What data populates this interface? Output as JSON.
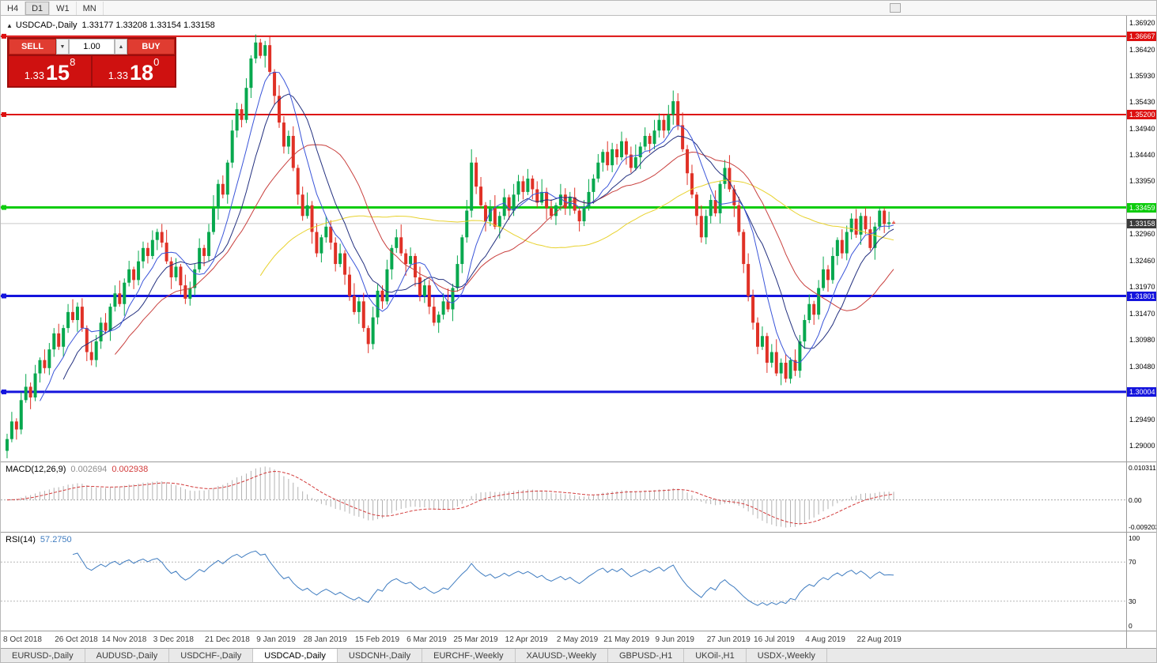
{
  "toolbar": {
    "timeframes": [
      "H4",
      "D1",
      "W1",
      "MN"
    ],
    "active": "D1"
  },
  "header": {
    "collapse_icon": "▲",
    "symbol": "USDCAD-,Daily",
    "ohlc": "1.33177 1.33208 1.33154 1.33158"
  },
  "trade": {
    "sell_label": "SELL",
    "buy_label": "BUY",
    "lot": "1.00",
    "spin_down": "▼",
    "spin_up": "▲",
    "sell_price": {
      "prefix": "1.33",
      "big": "15",
      "sup": "8"
    },
    "buy_price": {
      "prefix": "1.33",
      "big": "18",
      "sup": "0"
    }
  },
  "tabs": {
    "active_index": 3,
    "items": [
      "EURUSD-,Daily",
      "AUDUSD-,Daily",
      "USDCHF-,Daily",
      "USDCAD-,Daily",
      "USDCNH-,Daily",
      "EURCHF-,Weekly",
      "XAUUSD-,Weekly",
      "GBPUSD-,H1",
      "UKOil-,H1",
      "USDX-,Weekly"
    ]
  },
  "chart_data": {
    "type": "candlestick",
    "symbol": "USDCAD-",
    "timeframe": "Daily",
    "ylim": [
      1.287,
      1.3705
    ],
    "colors": {
      "up": "#07a84e",
      "down": "#e03126"
    },
    "y_ticks": [
      "1.36920",
      "1.36420",
      "1.35930",
      "1.35430",
      "1.34940",
      "1.34440",
      "1.33950",
      "1.32960",
      "1.32460",
      "1.31970",
      "1.31470",
      "1.30980",
      "1.30480",
      "1.29490",
      "1.29000"
    ],
    "hlines": [
      {
        "price": 1.36667,
        "label": "1.36667",
        "color": "#dd1010",
        "width": 2
      },
      {
        "price": 1.352,
        "label": "1.35200",
        "color": "#dd1010",
        "width": 2
      },
      {
        "price": 1.33459,
        "label": "1.33459",
        "color": "#0ecc0e",
        "width": 3
      },
      {
        "price": 1.31801,
        "label": "1.31801",
        "color": "#1414dd",
        "width": 3
      },
      {
        "price": 1.30004,
        "label": "1.30004",
        "color": "#1414dd",
        "width": 3
      }
    ],
    "current": {
      "price": 1.33158,
      "label": "1.33158",
      "chip_bg": "#3c3c3c"
    },
    "moving_averages": [
      {
        "period": 55,
        "color": "#e8d22e"
      },
      {
        "period": 24,
        "color": "#c9403e"
      },
      {
        "period": 13,
        "color": "#23307f"
      },
      {
        "period": 8,
        "color": "#3a55d9"
      }
    ],
    "x_labels": [
      {
        "text": "8 Oct 2018",
        "i": 0
      },
      {
        "text": "26 Oct 2018",
        "i": 11
      },
      {
        "text": "14 Nov 2018",
        "i": 21
      },
      {
        "text": "3 Dec 2018",
        "i": 32
      },
      {
        "text": "21 Dec 2018",
        "i": 43
      },
      {
        "text": "9 Jan 2019",
        "i": 54
      },
      {
        "text": "28 Jan 2019",
        "i": 64
      },
      {
        "text": "15 Feb 2019",
        "i": 75
      },
      {
        "text": "6 Mar 2019",
        "i": 86
      },
      {
        "text": "25 Mar 2019",
        "i": 96
      },
      {
        "text": "12 Apr 2019",
        "i": 107
      },
      {
        "text": "2 May 2019",
        "i": 118
      },
      {
        "text": "21 May 2019",
        "i": 128
      },
      {
        "text": "9 Jun 2019",
        "i": 139
      },
      {
        "text": "27 Jun 2019",
        "i": 150
      },
      {
        "text": "16 Jul 2019",
        "i": 160
      },
      {
        "text": "4 Aug 2019",
        "i": 171
      },
      {
        "text": "22 Aug 2019",
        "i": 182
      }
    ],
    "macd": {
      "title": "MACD(12,26,9)",
      "value_main": "0.002694",
      "value_signal": "0.002938",
      "fast": 12,
      "slow": 26,
      "signal": 9,
      "axis_top": "0.010311",
      "axis_zero": "0.00",
      "axis_bottom": "-0.0092030",
      "hist_color": "#b2b2b2",
      "signal_color": "#d23b3b"
    },
    "rsi": {
      "title": "RSI(14)",
      "value": "57.2750",
      "period": 14,
      "color": "#3f7cc0",
      "levels": [
        70,
        30
      ],
      "axis_top": "100",
      "axis_bottom": "0",
      "level_labels": [
        "70",
        "30"
      ]
    },
    "ohlc": [
      [
        1.289,
        1.2922,
        1.2876,
        1.2912
      ],
      [
        1.2912,
        1.2963,
        1.2906,
        1.2945
      ],
      [
        1.2945,
        1.2951,
        1.2911,
        1.293
      ],
      [
        1.293,
        1.3,
        1.2921,
        1.2985
      ],
      [
        1.2985,
        1.3034,
        1.298,
        1.301
      ],
      [
        1.301,
        1.3018,
        1.2968,
        1.299
      ],
      [
        1.299,
        1.3051,
        1.2983,
        1.3035
      ],
      [
        1.3035,
        1.3065,
        1.3018,
        1.306
      ],
      [
        1.306,
        1.308,
        1.3035,
        1.3045
      ],
      [
        1.3045,
        1.3092,
        1.3032,
        1.308
      ],
      [
        1.308,
        1.312,
        1.3066,
        1.311
      ],
      [
        1.311,
        1.3128,
        1.3079,
        1.3085
      ],
      [
        1.3085,
        1.3126,
        1.3066,
        1.312
      ],
      [
        1.312,
        1.3165,
        1.3111,
        1.315
      ],
      [
        1.315,
        1.3174,
        1.313,
        1.3135
      ],
      [
        1.3135,
        1.3168,
        1.3113,
        1.316
      ],
      [
        1.316,
        1.3176,
        1.3113,
        1.312
      ],
      [
        1.312,
        1.3125,
        1.3058,
        1.3075
      ],
      [
        1.3075,
        1.3095,
        1.305,
        1.306
      ],
      [
        1.306,
        1.3107,
        1.3047,
        1.3095
      ],
      [
        1.3095,
        1.314,
        1.3081,
        1.313
      ],
      [
        1.313,
        1.3148,
        1.3109,
        1.3115
      ],
      [
        1.3115,
        1.3166,
        1.3096,
        1.316
      ],
      [
        1.316,
        1.32,
        1.3151,
        1.3185
      ],
      [
        1.3185,
        1.3209,
        1.316,
        1.3165
      ],
      [
        1.3165,
        1.3213,
        1.3143,
        1.3205
      ],
      [
        1.3205,
        1.3246,
        1.3198,
        1.323
      ],
      [
        1.323,
        1.3235,
        1.3193,
        1.321
      ],
      [
        1.321,
        1.3265,
        1.32,
        1.3245
      ],
      [
        1.3245,
        1.3282,
        1.3232,
        1.327
      ],
      [
        1.327,
        1.328,
        1.3241,
        1.3255
      ],
      [
        1.3255,
        1.3303,
        1.3249,
        1.3285
      ],
      [
        1.3285,
        1.3306,
        1.3266,
        1.33
      ],
      [
        1.33,
        1.3315,
        1.3271,
        1.328
      ],
      [
        1.328,
        1.3304,
        1.324,
        1.3245
      ],
      [
        1.3245,
        1.3253,
        1.3193,
        1.3215
      ],
      [
        1.3215,
        1.3251,
        1.3208,
        1.3235
      ],
      [
        1.3235,
        1.324,
        1.3183,
        1.32
      ],
      [
        1.32,
        1.322,
        1.3165,
        1.3175
      ],
      [
        1.3175,
        1.3207,
        1.3162,
        1.3195
      ],
      [
        1.3195,
        1.324,
        1.3181,
        1.323
      ],
      [
        1.323,
        1.3288,
        1.3224,
        1.327
      ],
      [
        1.327,
        1.3276,
        1.3236,
        1.3255
      ],
      [
        1.3255,
        1.3315,
        1.3246,
        1.33
      ],
      [
        1.33,
        1.3369,
        1.3295,
        1.3345
      ],
      [
        1.3345,
        1.3398,
        1.3323,
        1.339
      ],
      [
        1.339,
        1.3406,
        1.3363,
        1.337
      ],
      [
        1.337,
        1.3435,
        1.3353,
        1.343
      ],
      [
        1.343,
        1.351,
        1.342,
        1.349
      ],
      [
        1.349,
        1.3542,
        1.3477,
        1.353
      ],
      [
        1.353,
        1.354,
        1.3496,
        1.351
      ],
      [
        1.351,
        1.3588,
        1.3504,
        1.357
      ],
      [
        1.357,
        1.3631,
        1.3551,
        1.3625
      ],
      [
        1.3625,
        1.367,
        1.3616,
        1.3655
      ],
      [
        1.3655,
        1.3662,
        1.3625,
        1.363
      ],
      [
        1.363,
        1.3658,
        1.3608,
        1.365
      ],
      [
        1.365,
        1.3666,
        1.3593,
        1.36
      ],
      [
        1.36,
        1.3605,
        1.3538,
        1.3555
      ],
      [
        1.3555,
        1.3575,
        1.3495,
        1.3505
      ],
      [
        1.3505,
        1.3517,
        1.3447,
        1.346
      ],
      [
        1.346,
        1.349,
        1.3446,
        1.348
      ],
      [
        1.348,
        1.3498,
        1.3414,
        1.342
      ],
      [
        1.342,
        1.3426,
        1.3351,
        1.337
      ],
      [
        1.337,
        1.3385,
        1.3321,
        1.333
      ],
      [
        1.333,
        1.3374,
        1.3325,
        1.335
      ],
      [
        1.335,
        1.3358,
        1.3278,
        1.33
      ],
      [
        1.33,
        1.3316,
        1.3253,
        1.326
      ],
      [
        1.326,
        1.3295,
        1.3243,
        1.329
      ],
      [
        1.329,
        1.333,
        1.328,
        1.331
      ],
      [
        1.331,
        1.3322,
        1.3267,
        1.328
      ],
      [
        1.328,
        1.329,
        1.3226,
        1.324
      ],
      [
        1.324,
        1.3278,
        1.3234,
        1.326
      ],
      [
        1.326,
        1.3266,
        1.3201,
        1.322
      ],
      [
        1.322,
        1.3235,
        1.3171,
        1.318
      ],
      [
        1.318,
        1.3204,
        1.3145,
        1.315
      ],
      [
        1.315,
        1.3178,
        1.3128,
        1.317
      ],
      [
        1.317,
        1.3186,
        1.3113,
        1.312
      ],
      [
        1.312,
        1.3125,
        1.3073,
        1.309
      ],
      [
        1.309,
        1.316,
        1.308,
        1.314
      ],
      [
        1.314,
        1.3202,
        1.3127,
        1.319
      ],
      [
        1.319,
        1.32,
        1.3156,
        1.317
      ],
      [
        1.317,
        1.3248,
        1.3164,
        1.323
      ],
      [
        1.323,
        1.3276,
        1.3211,
        1.327
      ],
      [
        1.327,
        1.3305,
        1.3261,
        1.329
      ],
      [
        1.329,
        1.3314,
        1.3255,
        1.326
      ],
      [
        1.326,
        1.3268,
        1.3218,
        1.324
      ],
      [
        1.324,
        1.3271,
        1.3233,
        1.3255
      ],
      [
        1.3255,
        1.326,
        1.3198,
        1.3215
      ],
      [
        1.3215,
        1.3235,
        1.317,
        1.318
      ],
      [
        1.318,
        1.3212,
        1.3167,
        1.32
      ],
      [
        1.32,
        1.321,
        1.3146,
        1.316
      ],
      [
        1.316,
        1.3178,
        1.3124,
        1.313
      ],
      [
        1.313,
        1.3151,
        1.3111,
        1.3145
      ],
      [
        1.3145,
        1.3185,
        1.3136,
        1.317
      ],
      [
        1.317,
        1.3194,
        1.315,
        1.3155
      ],
      [
        1.3155,
        1.3203,
        1.3133,
        1.3195
      ],
      [
        1.3195,
        1.3256,
        1.3188,
        1.324
      ],
      [
        1.324,
        1.3295,
        1.3223,
        1.329
      ],
      [
        1.329,
        1.336,
        1.328,
        1.334
      ],
      [
        1.334,
        1.3455,
        1.3327,
        1.343
      ],
      [
        1.343,
        1.344,
        1.3371,
        1.3385
      ],
      [
        1.3385,
        1.3403,
        1.3344,
        1.335
      ],
      [
        1.335,
        1.3356,
        1.3301,
        1.332
      ],
      [
        1.332,
        1.336,
        1.3311,
        1.3345
      ],
      [
        1.3345,
        1.3369,
        1.3305,
        1.331
      ],
      [
        1.331,
        1.3338,
        1.3288,
        1.333
      ],
      [
        1.333,
        1.3381,
        1.3323,
        1.3365
      ],
      [
        1.3365,
        1.337,
        1.3323,
        1.334
      ],
      [
        1.334,
        1.339,
        1.333,
        1.337
      ],
      [
        1.337,
        1.3407,
        1.3357,
        1.3395
      ],
      [
        1.3395,
        1.3405,
        1.3361,
        1.3375
      ],
      [
        1.3375,
        1.3418,
        1.3369,
        1.34
      ],
      [
        1.34,
        1.3406,
        1.3361,
        1.338
      ],
      [
        1.338,
        1.3395,
        1.3346,
        1.3355
      ],
      [
        1.3355,
        1.3399,
        1.335,
        1.3375
      ],
      [
        1.3375,
        1.3383,
        1.3323,
        1.3345
      ],
      [
        1.3345,
        1.3361,
        1.3323,
        1.333
      ],
      [
        1.333,
        1.3355,
        1.3313,
        1.335
      ],
      [
        1.335,
        1.339,
        1.334,
        1.337
      ],
      [
        1.337,
        1.3382,
        1.3332,
        1.3345
      ],
      [
        1.3345,
        1.3375,
        1.3331,
        1.3365
      ],
      [
        1.3365,
        1.3383,
        1.3334,
        1.334
      ],
      [
        1.334,
        1.3346,
        1.3301,
        1.332
      ],
      [
        1.332,
        1.336,
        1.3311,
        1.3345
      ],
      [
        1.3345,
        1.3399,
        1.334,
        1.3375
      ],
      [
        1.3375,
        1.3408,
        1.3353,
        1.34
      ],
      [
        1.34,
        1.3446,
        1.3393,
        1.343
      ],
      [
        1.343,
        1.3455,
        1.3413,
        1.345
      ],
      [
        1.345,
        1.347,
        1.3415,
        1.3425
      ],
      [
        1.3425,
        1.3467,
        1.3412,
        1.3455
      ],
      [
        1.3455,
        1.3465,
        1.3426,
        1.344
      ],
      [
        1.344,
        1.3488,
        1.3434,
        1.347
      ],
      [
        1.347,
        1.3476,
        1.3426,
        1.3445
      ],
      [
        1.3445,
        1.346,
        1.3411,
        1.342
      ],
      [
        1.342,
        1.3464,
        1.3415,
        1.344
      ],
      [
        1.344,
        1.3468,
        1.3418,
        1.346
      ],
      [
        1.346,
        1.3496,
        1.3453,
        1.348
      ],
      [
        1.348,
        1.3485,
        1.3448,
        1.3465
      ],
      [
        1.3465,
        1.351,
        1.3455,
        1.349
      ],
      [
        1.349,
        1.3522,
        1.3477,
        1.351
      ],
      [
        1.351,
        1.352,
        1.3476,
        1.349
      ],
      [
        1.349,
        1.3538,
        1.3484,
        1.352
      ],
      [
        1.352,
        1.3565,
        1.3501,
        1.3545
      ],
      [
        1.3545,
        1.356,
        1.3491,
        1.35
      ],
      [
        1.35,
        1.3524,
        1.345,
        1.3455
      ],
      [
        1.3455,
        1.3463,
        1.3388,
        1.341
      ],
      [
        1.341,
        1.3426,
        1.3363,
        1.337
      ],
      [
        1.337,
        1.3375,
        1.3313,
        1.333
      ],
      [
        1.333,
        1.335,
        1.328,
        1.329
      ],
      [
        1.329,
        1.3342,
        1.3277,
        1.333
      ],
      [
        1.333,
        1.337,
        1.3316,
        1.336
      ],
      [
        1.336,
        1.3378,
        1.3329,
        1.3335
      ],
      [
        1.3335,
        1.3396,
        1.3316,
        1.339
      ],
      [
        1.339,
        1.3435,
        1.3381,
        1.342
      ],
      [
        1.342,
        1.3444,
        1.3375,
        1.338
      ],
      [
        1.338,
        1.3388,
        1.3328,
        1.335
      ],
      [
        1.335,
        1.3366,
        1.3293,
        1.33
      ],
      [
        1.33,
        1.3305,
        1.3223,
        1.324
      ],
      [
        1.324,
        1.326,
        1.317,
        1.318
      ],
      [
        1.318,
        1.3192,
        1.3117,
        1.313
      ],
      [
        1.313,
        1.314,
        1.3071,
        1.3085
      ],
      [
        1.3085,
        1.3123,
        1.3079,
        1.3105
      ],
      [
        1.3105,
        1.3111,
        1.3036,
        1.3055
      ],
      [
        1.3055,
        1.309,
        1.3046,
        1.3075
      ],
      [
        1.3075,
        1.3099,
        1.303,
        1.3035
      ],
      [
        1.3035,
        1.3063,
        1.3013,
        1.3055
      ],
      [
        1.3055,
        1.3071,
        1.3018,
        1.3025
      ],
      [
        1.3025,
        1.3065,
        1.3016,
        1.306
      ],
      [
        1.306,
        1.308,
        1.303,
        1.304
      ],
      [
        1.304,
        1.3107,
        1.3027,
        1.3095
      ],
      [
        1.3095,
        1.3145,
        1.3081,
        1.3135
      ],
      [
        1.3135,
        1.3183,
        1.3129,
        1.3165
      ],
      [
        1.3165,
        1.3171,
        1.3126,
        1.3145
      ],
      [
        1.3145,
        1.321,
        1.3136,
        1.3195
      ],
      [
        1.3195,
        1.3254,
        1.319,
        1.323
      ],
      [
        1.323,
        1.3238,
        1.3188,
        1.321
      ],
      [
        1.321,
        1.3271,
        1.3203,
        1.3255
      ],
      [
        1.3255,
        1.329,
        1.3238,
        1.3285
      ],
      [
        1.3285,
        1.3305,
        1.325,
        1.326
      ],
      [
        1.326,
        1.3312,
        1.3247,
        1.33
      ],
      [
        1.33,
        1.3335,
        1.3286,
        1.3325
      ],
      [
        1.3325,
        1.3343,
        1.3289,
        1.3295
      ],
      [
        1.3295,
        1.3336,
        1.3276,
        1.333
      ],
      [
        1.333,
        1.3345,
        1.3296,
        1.3305
      ],
      [
        1.3305,
        1.3329,
        1.3265,
        1.327
      ],
      [
        1.327,
        1.3318,
        1.3248,
        1.331
      ],
      [
        1.331,
        1.3346,
        1.3303,
        1.334
      ],
      [
        1.334,
        1.3345,
        1.3298,
        1.3315
      ],
      [
        1.3315,
        1.3338,
        1.3305,
        1.3318
      ],
      [
        1.33177,
        1.33208,
        1.33154,
        1.33158
      ]
    ]
  }
}
